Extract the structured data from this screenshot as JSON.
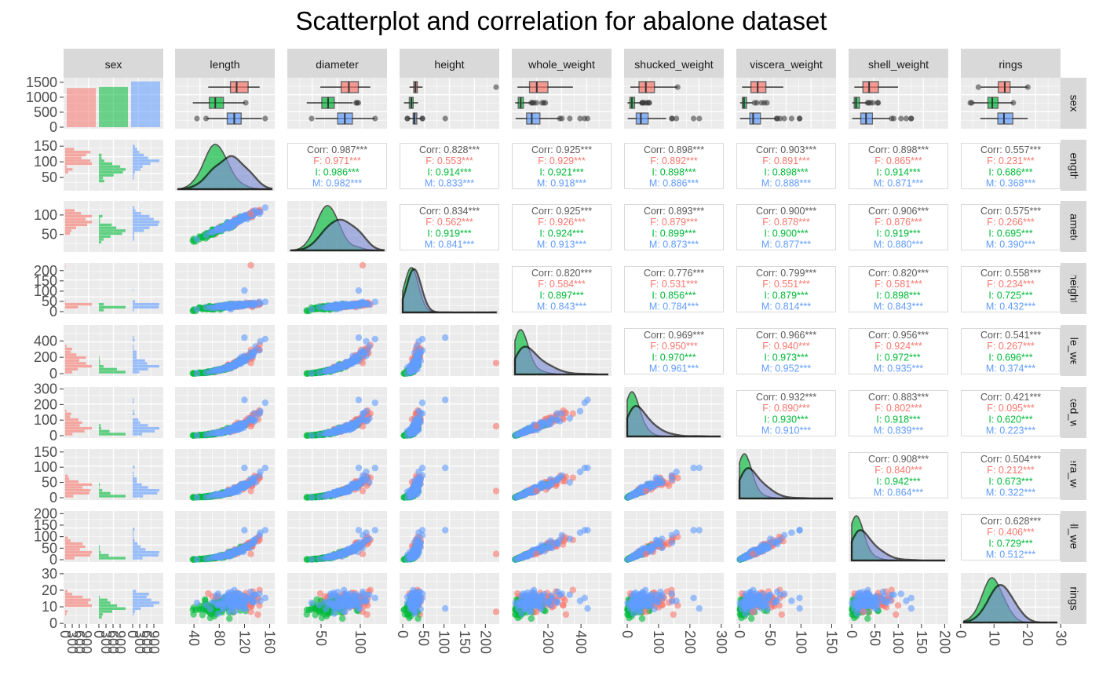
{
  "title": "Scatterplot and correlation for abalone dataset",
  "chart_data": {
    "type": "scatter",
    "variables": [
      "sex",
      "length",
      "diameter",
      "height",
      "whole_weight",
      "shucked_weight",
      "viscera_weight",
      "shell_weight",
      "rings"
    ],
    "groups": [
      "F",
      "I",
      "M"
    ],
    "colors": {
      "F": "#F8766D",
      "I": "#00BA38",
      "M": "#619CFF"
    },
    "sex_counts": {
      "F": 1307,
      "I": 1342,
      "M": 1528
    },
    "x_ticks": {
      "sex": [
        "0",
        "300",
        "600",
        "900",
        "0",
        "300",
        "600",
        "900",
        "0",
        "300",
        "600",
        "900"
      ],
      "length": [
        "40",
        "80",
        "120",
        "160"
      ],
      "diameter": [
        "50",
        "100"
      ],
      "height": [
        "0",
        "50",
        "100",
        "150",
        "200"
      ],
      "whole_weight": [
        "200",
        "400"
      ],
      "shucked_weight": [
        "0",
        "100",
        "200",
        "300"
      ],
      "viscera_weight": [
        "0",
        "50",
        "100",
        "150"
      ],
      "shell_weight": [
        "0",
        "50",
        "100",
        "150",
        "200"
      ],
      "rings": [
        "0",
        "10",
        "20",
        "30"
      ]
    },
    "y_ticks": {
      "sex": [
        "1500",
        "1000",
        "500",
        "0"
      ],
      "length": [
        "150",
        "100",
        "50"
      ],
      "diameter": [
        "100",
        "50"
      ],
      "height": [
        "200",
        "150",
        "100",
        "50",
        "0"
      ],
      "whole_weight": [
        "400",
        "200",
        "0"
      ],
      "shucked_weight": [
        "300",
        "200",
        "100",
        "0"
      ],
      "viscera_weight": [
        "150",
        "100",
        "50",
        "0"
      ],
      "shell_weight": [
        "200",
        "150",
        "100",
        "50",
        "0"
      ],
      "rings": [
        "30",
        "20",
        "10",
        "0"
      ]
    },
    "ranges": {
      "length": [
        15,
        163
      ],
      "diameter": [
        11,
        130
      ],
      "height": [
        0,
        226
      ],
      "whole_weight": [
        0,
        566
      ],
      "shucked_weight": [
        0,
        298
      ],
      "viscera_weight": [
        0,
        152
      ],
      "shell_weight": [
        0,
        201
      ],
      "rings": [
        1,
        29
      ]
    },
    "correlations": [
      {
        "row": "length",
        "col": "diameter",
        "values": [
          "Corr: 0.987***",
          "F: 0.971***",
          "I: 0.986***",
          "M: 0.982***"
        ]
      },
      {
        "row": "length",
        "col": "height",
        "values": [
          "Corr: 0.828***",
          "F: 0.553***",
          "I: 0.914***",
          "M: 0.833***"
        ]
      },
      {
        "row": "length",
        "col": "whole_weight",
        "values": [
          "Corr: 0.925***",
          "F: 0.929***",
          "I: 0.921***",
          "M: 0.918***"
        ]
      },
      {
        "row": "length",
        "col": "shucked_weight",
        "values": [
          "Corr: 0.898***",
          "F: 0.892***",
          "I: 0.898***",
          "M: 0.886***"
        ]
      },
      {
        "row": "length",
        "col": "viscera_weight",
        "values": [
          "Corr: 0.903***",
          "F: 0.891***",
          "I: 0.898***",
          "M: 0.888***"
        ]
      },
      {
        "row": "length",
        "col": "shell_weight",
        "values": [
          "Corr: 0.898***",
          "F: 0.865***",
          "I: 0.914***",
          "M: 0.871***"
        ]
      },
      {
        "row": "length",
        "col": "rings",
        "values": [
          "Corr: 0.557***",
          "F: 0.231***",
          "I: 0.686***",
          "M: 0.368***"
        ]
      },
      {
        "row": "diameter",
        "col": "height",
        "values": [
          "Corr: 0.834***",
          "F: 0.562***",
          "I: 0.919***",
          "M: 0.841***"
        ]
      },
      {
        "row": "diameter",
        "col": "whole_weight",
        "values": [
          "Corr: 0.925***",
          "F: 0.926***",
          "I: 0.924***",
          "M: 0.913***"
        ]
      },
      {
        "row": "diameter",
        "col": "shucked_weight",
        "values": [
          "Corr: 0.893***",
          "F: 0.879***",
          "I: 0.899***",
          "M: 0.873***"
        ]
      },
      {
        "row": "diameter",
        "col": "viscera_weight",
        "values": [
          "Corr: 0.900***",
          "F: 0.878***",
          "I: 0.900***",
          "M: 0.877***"
        ]
      },
      {
        "row": "diameter",
        "col": "shell_weight",
        "values": [
          "Corr: 0.906***",
          "F: 0.876***",
          "I: 0.919***",
          "M: 0.880***"
        ]
      },
      {
        "row": "diameter",
        "col": "rings",
        "values": [
          "Corr: 0.575***",
          "F: 0.266***",
          "I: 0.695***",
          "M: 0.390***"
        ]
      },
      {
        "row": "height",
        "col": "whole_weight",
        "values": [
          "Corr: 0.820***",
          "F: 0.584***",
          "I: 0.897***",
          "M: 0.843***"
        ]
      },
      {
        "row": "height",
        "col": "shucked_weight",
        "values": [
          "Corr: 0.776***",
          "F: 0.531***",
          "I: 0.856***",
          "M: 0.784***"
        ]
      },
      {
        "row": "height",
        "col": "viscera_weight",
        "values": [
          "Corr: 0.799***",
          "F: 0.551***",
          "I: 0.879***",
          "M: 0.814***"
        ]
      },
      {
        "row": "height",
        "col": "shell_weight",
        "values": [
          "Corr: 0.820***",
          "F: 0.581***",
          "I: 0.898***",
          "M: 0.843***"
        ]
      },
      {
        "row": "height",
        "col": "rings",
        "values": [
          "Corr: 0.558***",
          "F: 0.234***",
          "I: 0.725***",
          "M: 0.432***"
        ]
      },
      {
        "row": "whole_weight",
        "col": "shucked_weight",
        "values": [
          "Corr: 0.969***",
          "F: 0.950***",
          "I: 0.970***",
          "M: 0.961***"
        ]
      },
      {
        "row": "whole_weight",
        "col": "viscera_weight",
        "values": [
          "Corr: 0.966***",
          "F: 0.940***",
          "I: 0.973***",
          "M: 0.952***"
        ]
      },
      {
        "row": "whole_weight",
        "col": "shell_weight",
        "values": [
          "Corr: 0.956***",
          "F: 0.924***",
          "I: 0.972***",
          "M: 0.935***"
        ]
      },
      {
        "row": "whole_weight",
        "col": "rings",
        "values": [
          "Corr: 0.541***",
          "F: 0.267***",
          "I: 0.696***",
          "M: 0.374***"
        ]
      },
      {
        "row": "shucked_weight",
        "col": "viscera_weight",
        "values": [
          "Corr: 0.932***",
          "F: 0.890***",
          "I: 0.930***",
          "M: 0.910***"
        ]
      },
      {
        "row": "shucked_weight",
        "col": "shell_weight",
        "values": [
          "Corr: 0.883***",
          "F: 0.802***",
          "I: 0.918***",
          "M: 0.839***"
        ]
      },
      {
        "row": "shucked_weight",
        "col": "rings",
        "values": [
          "Corr: 0.421***",
          "F: 0.095***",
          "I: 0.620***",
          "M: 0.223***"
        ]
      },
      {
        "row": "viscera_weight",
        "col": "shell_weight",
        "values": [
          "Corr: 0.908***",
          "F: 0.840***",
          "I: 0.942***",
          "M: 0.864***"
        ]
      },
      {
        "row": "viscera_weight",
        "col": "rings",
        "values": [
          "Corr: 0.504***",
          "F: 0.212***",
          "I: 0.673***",
          "M: 0.322***"
        ]
      },
      {
        "row": "shell_weight",
        "col": "rings",
        "values": [
          "Corr: 0.628***",
          "F: 0.406***",
          "I: 0.729***",
          "M: 0.512***"
        ]
      }
    ]
  }
}
